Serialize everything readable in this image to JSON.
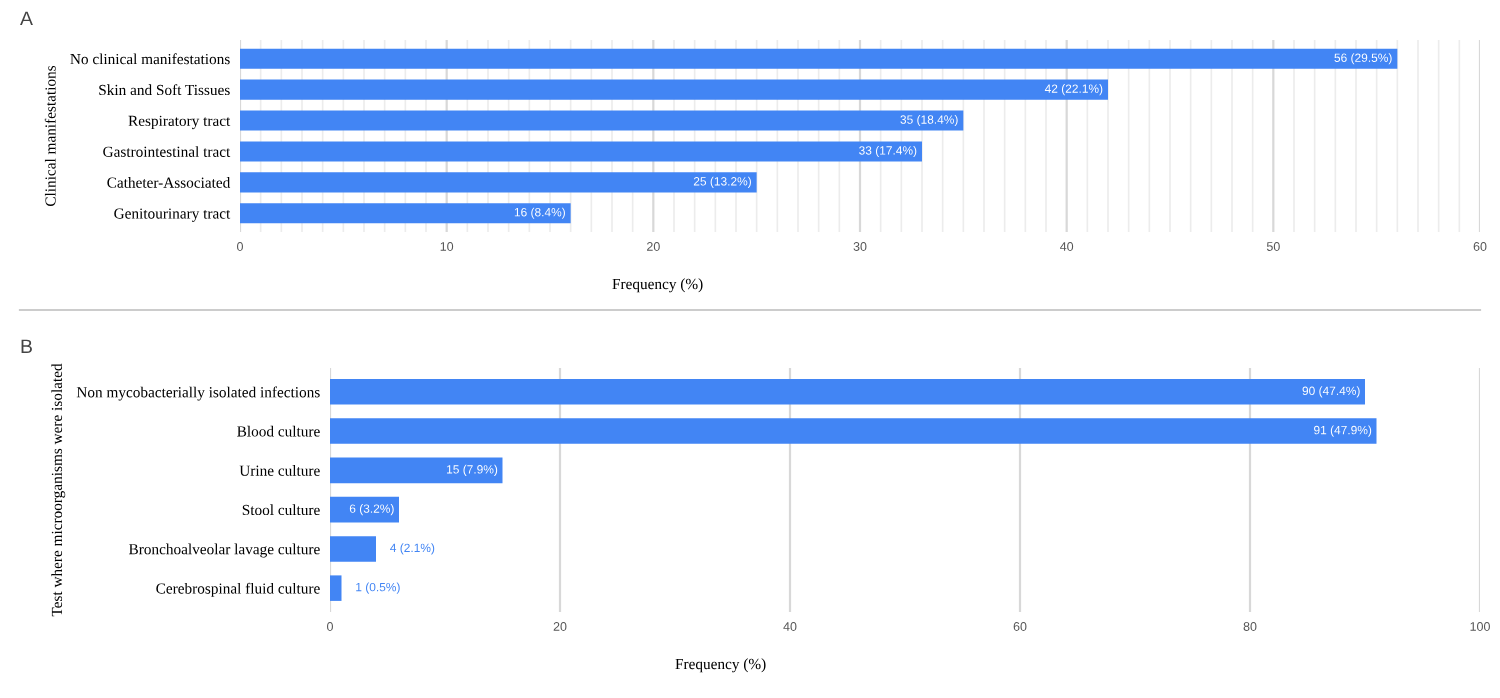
{
  "chart_data": [
    {
      "type": "bar",
      "orientation": "horizontal",
      "title": "A",
      "ylabel": "Clinical manifestations",
      "xlabel": "Frequency (%)",
      "categories": [
        "No clinical manifestations",
        "Skin and Soft Tissues",
        "Respiratory tract",
        "Gastrointestinal tract",
        "Catheter-Associated",
        "Genitourinary tract"
      ],
      "values": [
        56,
        42,
        35,
        33,
        25,
        16
      ],
      "color": "#4285f4",
      "value_labels": [
        "56 (29.5%)",
        "42 (22.1%)",
        "35 (18.4%)",
        "33 (17.4%)",
        "25 (13.2%)",
        "16 (8.4%)"
      ],
      "xlim": [
        0,
        60
      ],
      "xticks": [
        0,
        {
          "value": 1,
          "label": null
        },
        {
          "value": 2,
          "label": null
        },
        {
          "value": 3,
          "label": null
        },
        {
          "value": 4,
          "label": null
        },
        {
          "value": 5,
          "label": null
        },
        {
          "value": 6,
          "label": null
        },
        {
          "value": 7,
          "label": null
        },
        {
          "value": 8,
          "label": null
        },
        {
          "value": 9,
          "label": null
        },
        10,
        {
          "value": 11,
          "label": null
        },
        {
          "value": 12,
          "label": null
        },
        {
          "value": 13,
          "label": null
        },
        {
          "value": 14,
          "label": null
        },
        {
          "value": 15,
          "label": null
        },
        {
          "value": 16,
          "label": null
        },
        {
          "value": 17,
          "label": null
        },
        {
          "value": 18,
          "label": null
        },
        {
          "value": 19,
          "label": null
        },
        20,
        {
          "value": 21,
          "label": null
        },
        {
          "value": 22,
          "label": null
        },
        {
          "value": 23,
          "label": null
        },
        {
          "value": 24,
          "label": null
        },
        {
          "value": 25,
          "label": null
        },
        {
          "value": 26,
          "label": null
        },
        {
          "value": 27,
          "label": null
        },
        {
          "value": 28,
          "label": null
        },
        {
          "value": 29,
          "label": null
        },
        30,
        {
          "value": 31,
          "label": null
        },
        {
          "value": 32,
          "label": null
        },
        {
          "value": 33,
          "label": null
        },
        {
          "value": 34,
          "label": null
        },
        {
          "value": 35,
          "label": null
        },
        {
          "value": 36,
          "label": null
        },
        {
          "value": 37,
          "label": null
        },
        {
          "value": 38,
          "label": null
        },
        {
          "value": 39,
          "label": null
        },
        40,
        {
          "value": 41,
          "label": null
        },
        {
          "value": 42,
          "label": null
        },
        {
          "value": 43,
          "label": null
        },
        {
          "value": 44,
          "label": null
        },
        {
          "value": 45,
          "label": null
        },
        {
          "value": 46,
          "label": null
        },
        {
          "value": 47,
          "label": null
        },
        {
          "value": 48,
          "label": null
        },
        {
          "value": 49,
          "label": null
        },
        50,
        {
          "value": 51,
          "label": null
        },
        {
          "value": 52,
          "label": null
        },
        {
          "value": 53,
          "label": null
        },
        {
          "value": 54,
          "label": null
        },
        {
          "value": 55,
          "label": null
        },
        {
          "value": 56,
          "label": null
        },
        {
          "value": 57,
          "label": null
        },
        {
          "value": 58,
          "label": null
        },
        {
          "value": 59,
          "label": null
        },
        60
      ],
      "grid": "x"
    },
    {
      "type": "bar",
      "orientation": "horizontal",
      "title": "B",
      "ylabel": "Test where microorganisms were isolated",
      "xlabel": "Frequency (%)",
      "categories": [
        "Non mycobacterially isolated infections",
        "Blood culture",
        "Urine culture",
        "Stool culture",
        "Bronchoalveolar lavage culture",
        "Cerebrospinal fluid culture"
      ],
      "values": [
        90,
        91,
        15,
        6,
        4,
        1
      ],
      "color": "#4285f4",
      "value_labels": [
        "90 (47.4%)",
        "91 (47.9%)",
        "15 (7.9%)",
        "6 (3.2%)",
        "4 (2.1%)",
        "1 (0.5%)"
      ],
      "xlim": [
        0,
        100
      ],
      "xticks": [
        0,
        20,
        40,
        60,
        80,
        100
      ],
      "grid": "x"
    }
  ]
}
